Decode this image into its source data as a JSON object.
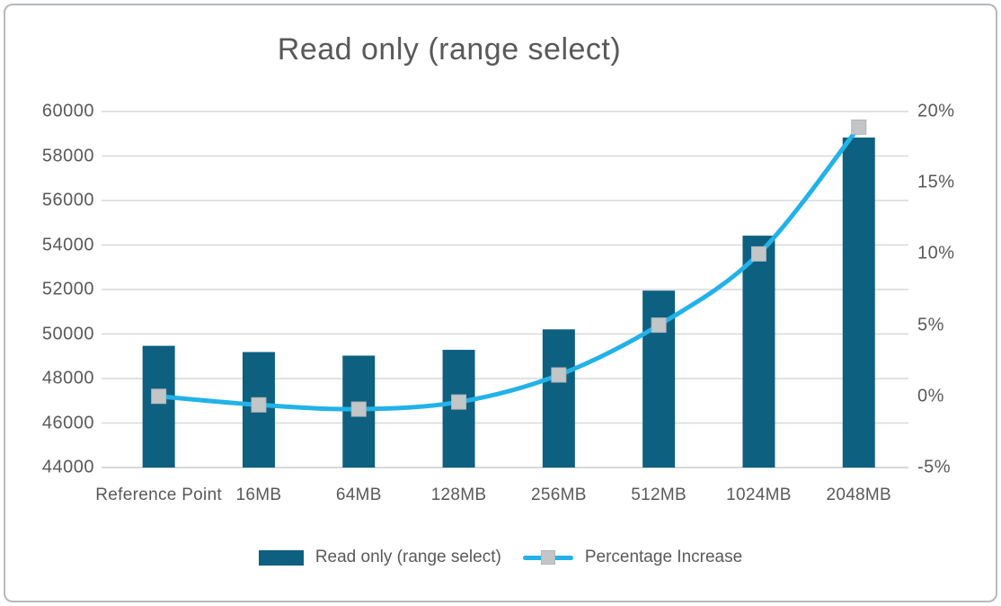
{
  "colors": {
    "bar": "#0d6080",
    "line": "#22b2e8",
    "marker": "#c3c6c7",
    "grid": "#d9d9d9",
    "baseline": "#c9cbcd",
    "text": "#595959",
    "frame_border": "#b5b9bc"
  },
  "chart_data": {
    "type": "bar",
    "subtype": "combo bar+line, dual axis",
    "title": "Read only (range select)",
    "categories": [
      "Reference Point",
      "16MB",
      "64MB",
      "128MB",
      "256MB",
      "512MB",
      "1024MB",
      "2048MB"
    ],
    "series": [
      {
        "name": "Read only (range select)",
        "type": "bar",
        "axis": "left",
        "values": [
          49470,
          49190,
          49030,
          49290,
          50210,
          51950,
          54420,
          58830
        ]
      },
      {
        "name": "Percentage Increase",
        "type": "line",
        "axis": "right",
        "values_percent": [
          0.0,
          -0.6,
          -0.9,
          -0.4,
          1.5,
          5.0,
          10.0,
          18.9
        ]
      }
    ],
    "left_axis": {
      "min": 44000,
      "max": 60000,
      "step": 2000,
      "ticks": [
        "44000",
        "46000",
        "48000",
        "50000",
        "52000",
        "54000",
        "56000",
        "58000",
        "60000"
      ]
    },
    "right_axis": {
      "min": -5,
      "max": 20,
      "step": 5,
      "ticks": [
        "-5%",
        "0%",
        "5%",
        "10%",
        "15%",
        "20%"
      ]
    },
    "grid": true,
    "legend_position": "bottom"
  },
  "legend": {
    "items": [
      {
        "label": "Read only (range select)",
        "swatch": "bar"
      },
      {
        "label": "Percentage Increase",
        "swatch": "line-marker"
      }
    ]
  }
}
